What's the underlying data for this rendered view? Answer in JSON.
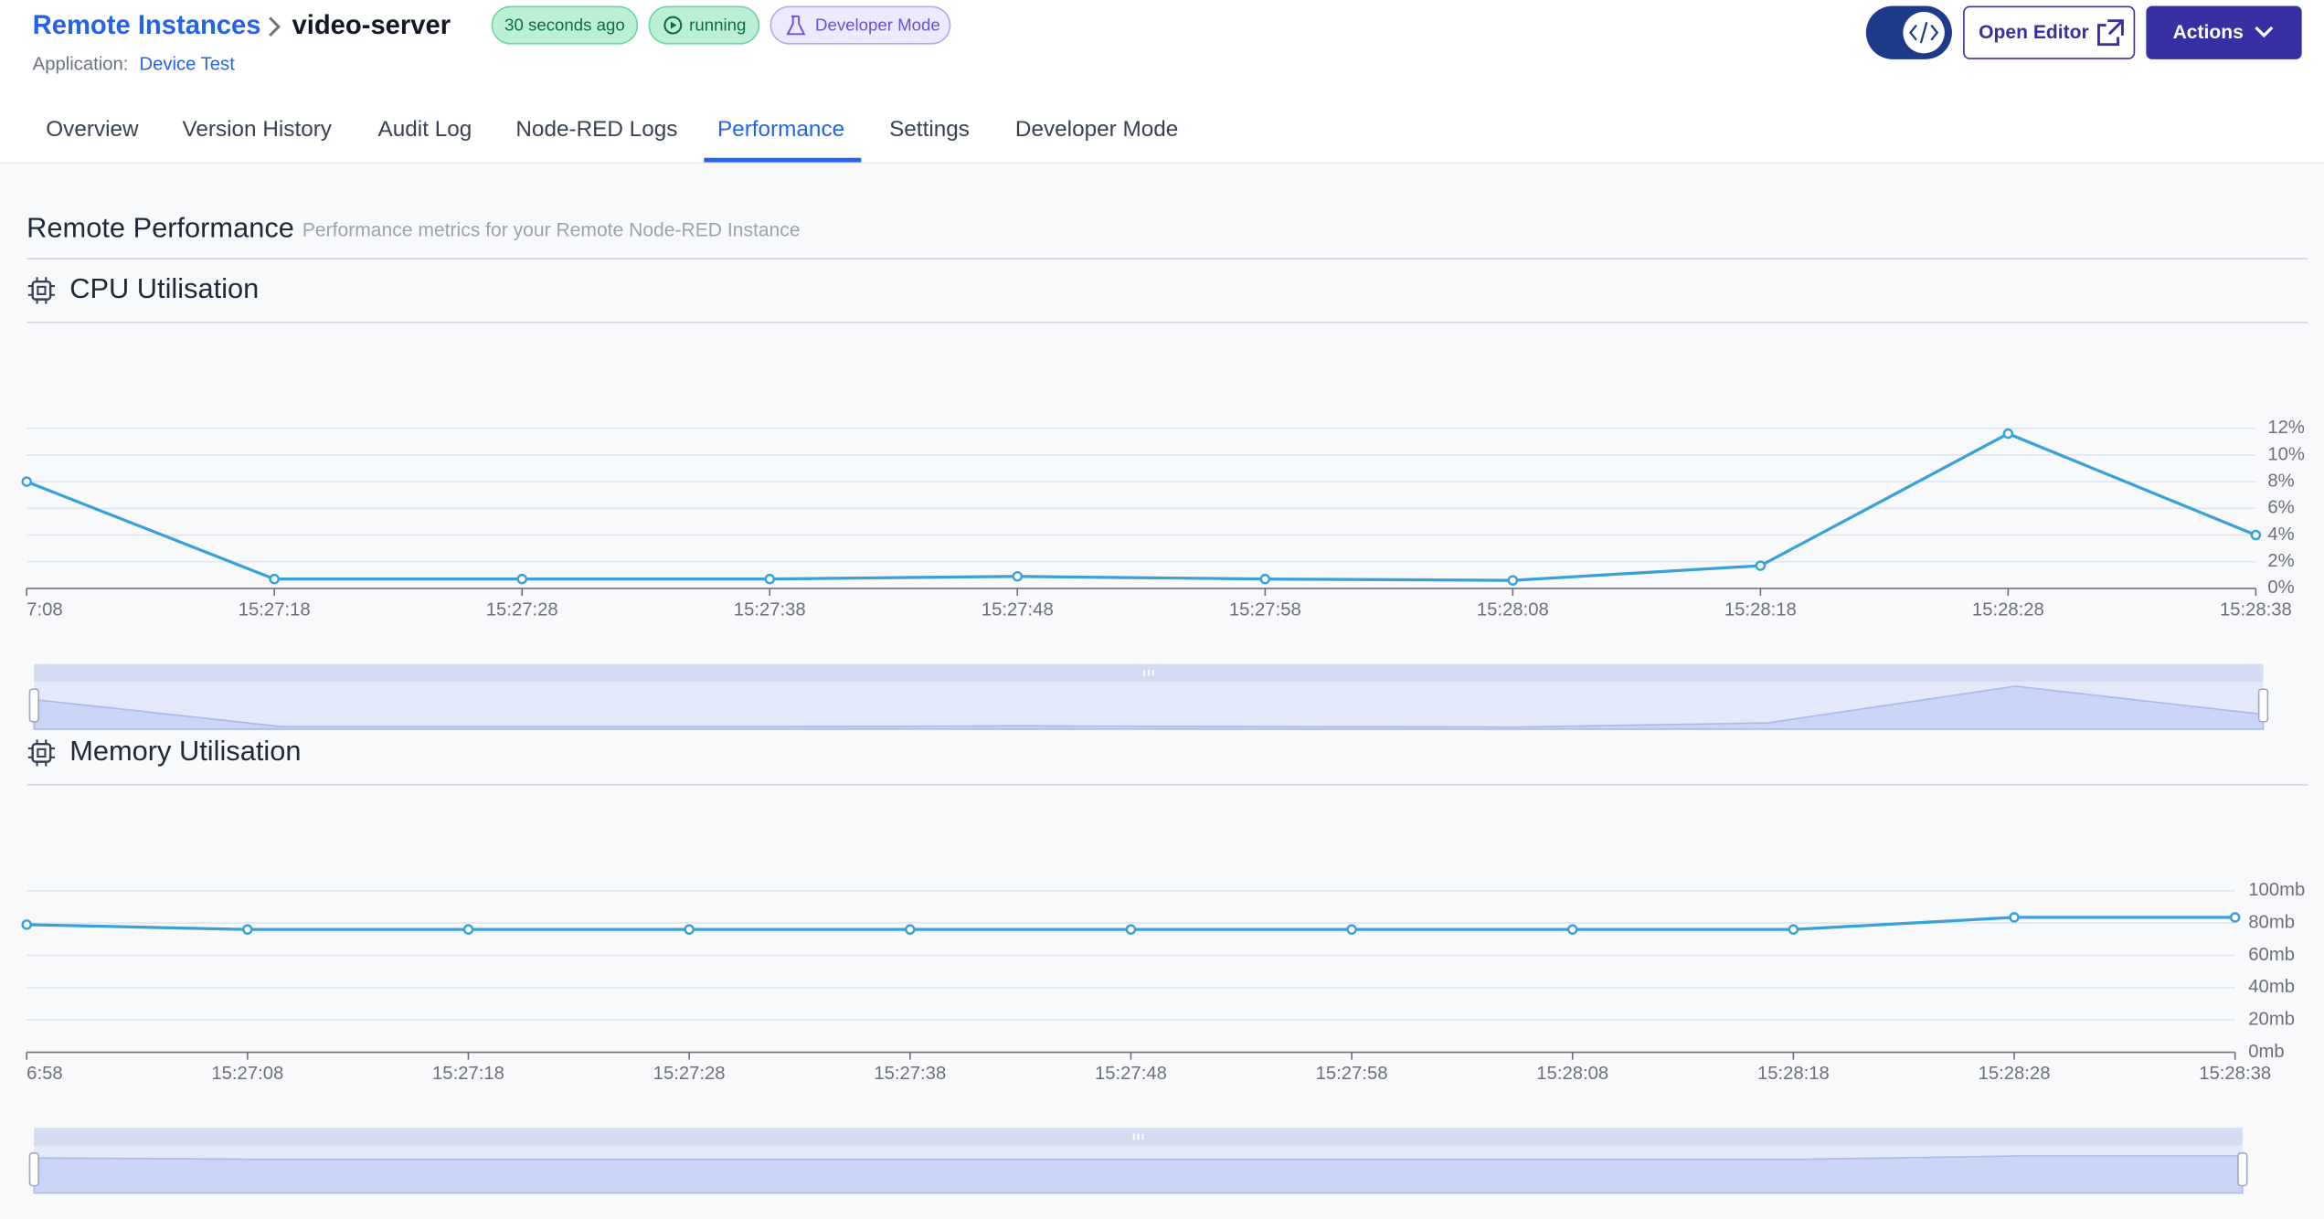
{
  "header": {
    "breadcrumb": "Remote Instances",
    "title": "video-server",
    "application_label": "Application:",
    "application": "Device Test",
    "badges": [
      "30 seconds ago",
      "running",
      "Developer Mode"
    ],
    "buttons": [
      "Open Editor",
      "Actions"
    ]
  },
  "tabs": [
    "Overview",
    "Version History",
    "Audit Log",
    "Node-RED Logs",
    "Performance",
    "Settings",
    "Developer Mode"
  ],
  "section": {
    "title": "Remote Performance",
    "subtitle": "Performance metrics for your Remote Node-RED Instance"
  },
  "chart_data": [
    {
      "type": "line",
      "title": "CPU Utilisation",
      "color": "#3aa0d8",
      "categories": [
        "7:08",
        "15:27:18",
        "15:27:28",
        "15:27:38",
        "15:27:48",
        "15:27:58",
        "15:28:08",
        "15:28:18",
        "15:28:28",
        "15:28:38"
      ],
      "values": [
        8,
        0.7,
        0.7,
        0.7,
        0.9,
        0.7,
        0.6,
        1.7,
        11.6,
        4
      ],
      "ylim": [
        0,
        12
      ],
      "yticks": [
        {
          "value": 0,
          "label": "0%"
        },
        {
          "value": 2,
          "label": "2%"
        },
        {
          "value": 4,
          "label": "4%"
        },
        {
          "value": 6,
          "label": "6%"
        },
        {
          "value": 8,
          "label": "8%"
        },
        {
          "value": 10,
          "label": "10%"
        },
        {
          "value": 12,
          "label": "12%"
        }
      ],
      "grid": true
    },
    {
      "type": "line",
      "title": "Memory Utilisation",
      "color": "#3aa0d8",
      "categories": [
        "6:58",
        "15:27:08",
        "15:27:18",
        "15:27:28",
        "15:27:38",
        "15:27:48",
        "15:27:58",
        "15:28:08",
        "15:28:18",
        "15:28:28",
        "15:28:38"
      ],
      "values": [
        79,
        76,
        76,
        76,
        76,
        76,
        76,
        76,
        76,
        83.5,
        83.5
      ],
      "ylim": [
        0,
        100
      ],
      "yticks": [
        {
          "value": 0,
          "label": "0mb"
        },
        {
          "value": 20,
          "label": "20mb"
        },
        {
          "value": 40,
          "label": "40mb"
        },
        {
          "value": 60,
          "label": "60mb"
        },
        {
          "value": 80,
          "label": "80mb"
        },
        {
          "value": 100,
          "label": "100mb"
        }
      ],
      "grid": true
    }
  ]
}
